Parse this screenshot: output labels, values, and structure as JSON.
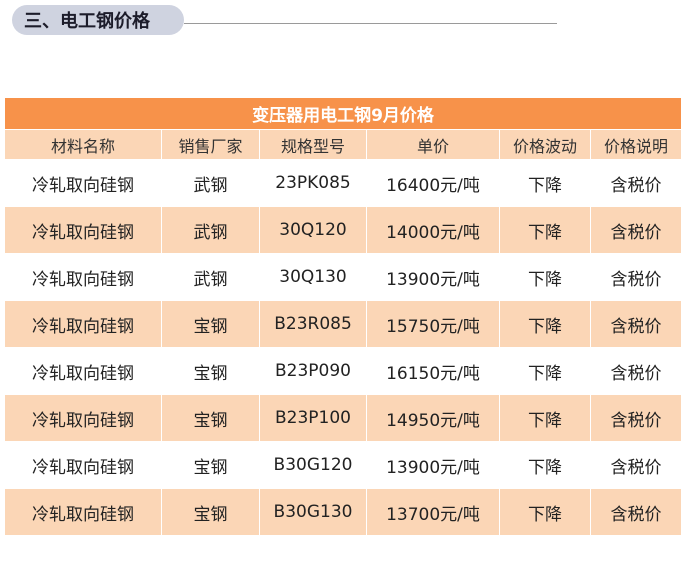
{
  "section": {
    "title": "三、电工钢价格"
  },
  "table": {
    "title": "变压器用电工钢9月价格",
    "headers": [
      "材料名称",
      "销售厂家",
      "规格型号",
      "单价",
      "价格波动",
      "价格说明"
    ],
    "rows": [
      [
        "冷轧取向硅钢",
        "武钢",
        "23PK085",
        "16400元/吨",
        "下降",
        "含税价"
      ],
      [
        "冷轧取向硅钢",
        "武钢",
        "30Q120",
        "14000元/吨",
        "下降",
        "含税价"
      ],
      [
        "冷轧取向硅钢",
        "武钢",
        "30Q130",
        "13900元/吨",
        "下降",
        "含税价"
      ],
      [
        "冷轧取向硅钢",
        "宝钢",
        "B23R085",
        "15750元/吨",
        "下降",
        "含税价"
      ],
      [
        "冷轧取向硅钢",
        "宝钢",
        "B23P090",
        "16150元/吨",
        "下降",
        "含税价"
      ],
      [
        "冷轧取向硅钢",
        "宝钢",
        "B23P100",
        "14950元/吨",
        "下降",
        "含税价"
      ],
      [
        "冷轧取向硅钢",
        "宝钢",
        "B30G120",
        "13900元/吨",
        "下降",
        "含税价"
      ],
      [
        "冷轧取向硅钢",
        "宝钢",
        "B30G130",
        "13700元/吨",
        "下降",
        "含税价"
      ]
    ]
  },
  "colors": {
    "title_bg": "#f7924a",
    "stripe_bg": "#fbd6b6",
    "pill_bg": "#cfd3e0"
  }
}
